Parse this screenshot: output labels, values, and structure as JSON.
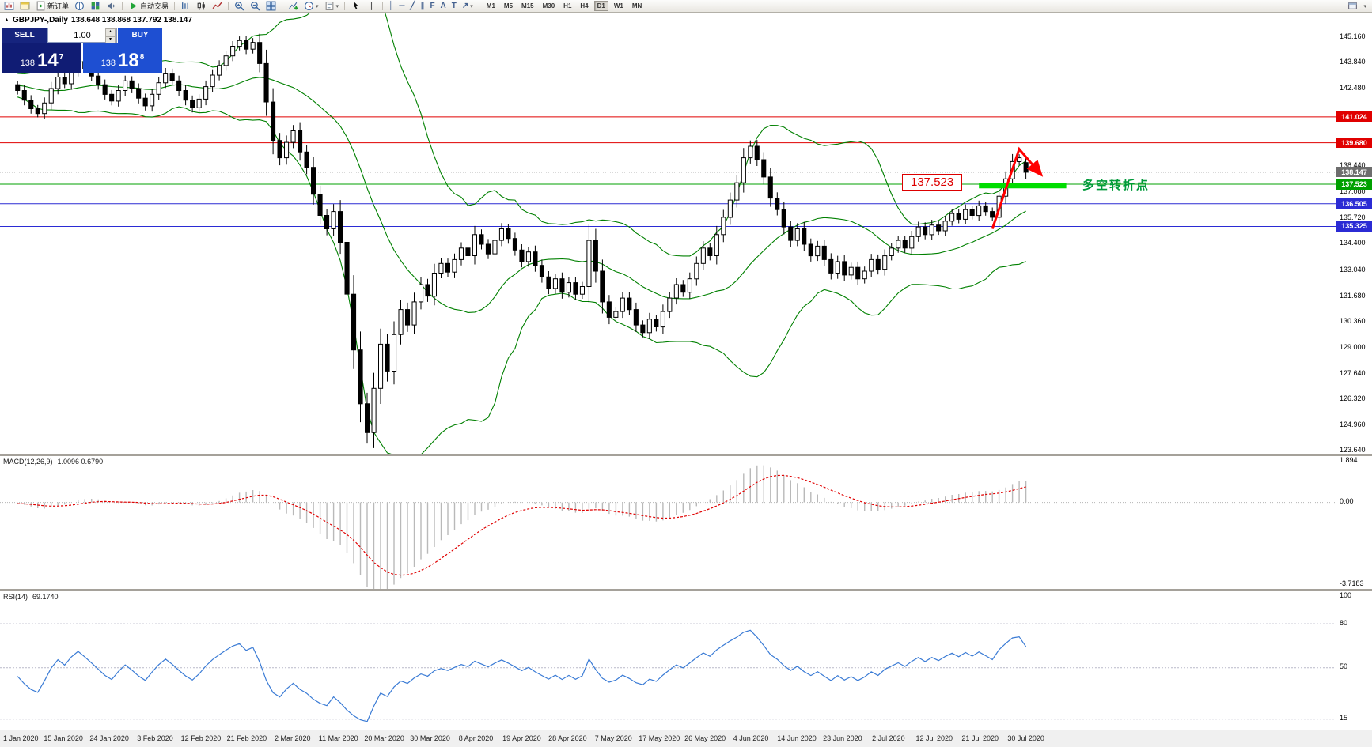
{
  "toolbar": {
    "new_order_label": "新订单",
    "autotrade_label": "自动交易",
    "timeframes": [
      "M1",
      "M5",
      "M15",
      "M30",
      "H1",
      "H4",
      "D1",
      "W1",
      "MN"
    ],
    "active_timeframe": "D1",
    "glyphs": {
      "vline": "│",
      "hline": "─",
      "trendline": "╱",
      "channel": "∥",
      "fibonacci": "F",
      "text": "A",
      "label": "T",
      "arrows": "↗",
      "caret": "▾"
    }
  },
  "symbol_header": {
    "title": "GBPJPY-,Daily",
    "ohlc": "138.648 138.868 137.792 138.147"
  },
  "one_click": {
    "collapse_icon": "▲",
    "sell_label": "SELL",
    "buy_label": "BUY",
    "volume": "1.00",
    "spin_up": "▴",
    "spin_down": "▾",
    "sell_small": "138",
    "sell_big": "14",
    "sell_sup": "7",
    "buy_small": "138",
    "buy_big": "18",
    "buy_sup": "8"
  },
  "chart_data": {
    "type": "candlestick",
    "symbol": "GBPJPY",
    "timeframe": "Daily",
    "dates": [
      "1 Jan 2020",
      "15 Jan 2020",
      "24 Jan 2020",
      "3 Feb 2020",
      "12 Feb 2020",
      "21 Feb 2020",
      "2 Mar 2020",
      "11 Mar 2020",
      "20 Mar 2020",
      "30 Mar 2020",
      "8 Apr 2020",
      "19 Apr 2020",
      "28 Apr 2020",
      "7 May 2020",
      "17 May 2020",
      "26 May 2020",
      "4 Jun 2020",
      "14 Jun 2020",
      "23 Jun 2020",
      "2 Jul 2020",
      "12 Jul 2020",
      "21 Jul 2020",
      "30 Jul 2020"
    ],
    "pre_closes": [
      142.9,
      143.1,
      142.8,
      143.0,
      142.7,
      142.9,
      142.5,
      142.2,
      142.6,
      142.3,
      142.0,
      142.4,
      142.8,
      142.5,
      142.9,
      143.2,
      142.9,
      142.6,
      142.7
    ],
    "closes": [
      142.4,
      141.9,
      141.45,
      141.2,
      141.75,
      142.5,
      143.1,
      142.75,
      143.4,
      143.9,
      143.55,
      143.15,
      142.7,
      142.2,
      141.85,
      142.4,
      142.9,
      142.5,
      142.0,
      141.6,
      142.2,
      142.8,
      143.3,
      142.9,
      142.4,
      141.9,
      141.5,
      141.95,
      142.6,
      143.2,
      143.7,
      144.2,
      144.7,
      145.0,
      144.55,
      144.9,
      143.8,
      141.8,
      139.8,
      138.9,
      139.7,
      140.3,
      139.2,
      138.4,
      137.0,
      135.9,
      135.2,
      136.1,
      134.5,
      131.8,
      128.9,
      126.1,
      124.6,
      126.9,
      129.2,
      127.8,
      129.7,
      131.0,
      130.2,
      131.4,
      132.3,
      131.7,
      132.9,
      133.4,
      132.95,
      133.6,
      134.2,
      133.8,
      134.9,
      134.4,
      133.9,
      134.6,
      135.2,
      134.7,
      134.1,
      133.5,
      134.0,
      133.3,
      132.7,
      132.1,
      132.6,
      131.9,
      132.4,
      131.8,
      132.2,
      134.6,
      133.0,
      131.4,
      130.6,
      130.9,
      131.6,
      131.0,
      130.2,
      129.8,
      130.5,
      130.1,
      130.9,
      131.6,
      132.3,
      131.9,
      132.6,
      133.4,
      134.2,
      133.8,
      134.9,
      135.8,
      136.7,
      137.6,
      138.9,
      139.5,
      138.8,
      137.9,
      136.8,
      136.2,
      135.3,
      134.6,
      135.2,
      134.4,
      133.8,
      134.3,
      133.6,
      132.9,
      133.5,
      132.8,
      133.2,
      132.6,
      133.0,
      133.6,
      133.1,
      133.8,
      134.2,
      134.6,
      134.2,
      134.8,
      135.3,
      134.9,
      135.4,
      135.1,
      135.6,
      136.0,
      135.7,
      136.2,
      135.9,
      136.4,
      136.1,
      135.8,
      136.9,
      137.8,
      138.7,
      138.9,
      138.147
    ],
    "last_candle": {
      "open": 138.648,
      "high": 138.868,
      "low": 137.792,
      "close": 138.147
    },
    "wick_rule": {
      "base": 0.12,
      "factor": 0.3
    },
    "bollinger": {
      "period": 20,
      "deviation": 2,
      "color": "#008000"
    },
    "hlines": [
      {
        "price": 141.024,
        "color": "#e00000",
        "width": 1
      },
      {
        "price": 139.68,
        "color": "#e00000",
        "width": 1
      },
      {
        "price": 138.147,
        "color": "#9a9a9a",
        "width": 1,
        "style": "dot"
      },
      {
        "price": 137.523,
        "color": "#00a000",
        "width": 1
      },
      {
        "price": 136.505,
        "color": "#2b2bd4",
        "width": 1
      },
      {
        "price": 135.325,
        "color": "#2b2bd4",
        "width": 1
      }
    ],
    "highlight_segment": {
      "from_idx": 143,
      "to_idx": 156,
      "price": 137.45,
      "thickness": 7,
      "color": "#00dd00"
    },
    "arrow": {
      "color": "#ff0000",
      "points": [
        [
          145,
          135.2
        ],
        [
          149,
          139.35
        ],
        [
          152.3,
          138.0
        ]
      ]
    },
    "annotations": {
      "price_label": "137.523",
      "turning_point_text": "多空转折点"
    },
    "price_scale": {
      "labels": [
        "145.160",
        "143.840",
        "142.480",
        "138.440",
        "137.080",
        "135.720",
        "134.400",
        "133.040",
        "131.680",
        "130.360",
        "129.000",
        "127.640",
        "126.320",
        "124.960",
        "123.640"
      ],
      "tags": [
        {
          "text": "141.024",
          "color": "#e00000"
        },
        {
          "text": "139.680",
          "color": "#e00000"
        },
        {
          "text": "138.147",
          "color": "#6d6d6d"
        },
        {
          "text": "137.523",
          "color": "#00a000"
        },
        {
          "text": "136.505",
          "color": "#2b2bd4"
        },
        {
          "text": "135.325",
          "color": "#2b2bd4"
        }
      ]
    },
    "macd": {
      "label": "MACD(12,26,9)",
      "values": "1.0096 0.6790",
      "scale_labels": [
        "1.894",
        "0.00",
        "-3.7183"
      ],
      "scale_max": 1.894,
      "scale_min": -3.7183
    },
    "rsi": {
      "label": "RSI(14)",
      "value": "69.1740",
      "scale_labels": [
        "100",
        "80",
        "50",
        "15"
      ],
      "levels": [
        80,
        50,
        15
      ]
    }
  }
}
